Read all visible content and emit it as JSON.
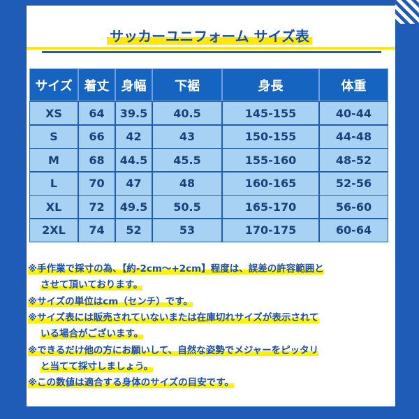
{
  "title": "サッカーユニフォーム サイズ表",
  "table": {
    "header": [
      "サイズ",
      "着丈",
      "身幅",
      "下裾",
      "身長",
      "体重"
    ],
    "rows": [
      [
        "XS",
        "64",
        "39.5",
        "40.5",
        "145-155",
        "40-44"
      ],
      [
        "S",
        "66",
        "42",
        "43",
        "150-155",
        "44-48"
      ],
      [
        "M",
        "68",
        "44.5",
        "45.5",
        "155-160",
        "48-52"
      ],
      [
        "L",
        "70",
        "47",
        "48",
        "160-165",
        "52-56"
      ],
      [
        "XL",
        "72",
        "49.5",
        "50.5",
        "165-170",
        "56-60"
      ],
      [
        "2XL",
        "74",
        "52",
        "53",
        "170-175",
        "60-64"
      ]
    ]
  },
  "notes": [
    {
      "lines": [
        "※手作業で採寸の為、【約-2cm〜+2cm】程度は、誤差の許容範囲と",
        "させて頂いております。"
      ]
    },
    {
      "lines": [
        "※サイズの単位はcm（センチ）です。"
      ]
    },
    {
      "lines": [
        "※サイズ表には販売されていないまたは在庫切れサイズが表示されて",
        "いる場合がございます。"
      ]
    },
    {
      "lines": [
        "※できるだけ他の方にお願いして、自然な姿勢でメジャーをピッタリ",
        "と当てて採寸しましょう。"
      ]
    },
    {
      "lines": [
        "※この数値は適合する身体のサイズの目安です。"
      ]
    }
  ]
}
